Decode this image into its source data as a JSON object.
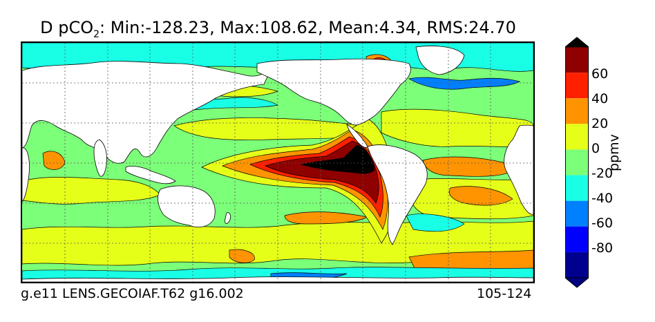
{
  "title": {
    "prefix": "D pCO",
    "subscript": "2",
    "suffix": ": Min:-128.23, Max:108.62, Mean:4.34, RMS:24.70"
  },
  "footer": {
    "left": "g.e11 LENS.GECOIAF.T62 g16.002",
    "right": "105-124"
  },
  "colorbar": {
    "label": "ppmv",
    "ticks": [
      "60",
      "40",
      "20",
      "0",
      "-20",
      "-40",
      "-60",
      "-80"
    ],
    "bands": [
      {
        "range": "< -100",
        "color": "#000080"
      },
      {
        "range": "-100 to -80",
        "color": "#00008f"
      },
      {
        "range": "-80 to -60",
        "color": "#0000ff"
      },
      {
        "range": "-60 to -40",
        "color": "#0080ff"
      },
      {
        "range": "-40 to -20",
        "color": "#19ffe6"
      },
      {
        "range": "-20 to 0",
        "color": "#7cff79"
      },
      {
        "range": "0 to 20",
        "color": "#e6ff19"
      },
      {
        "range": "20 to 40",
        "color": "#ff9400"
      },
      {
        "range": "40 to 60",
        "color": "#ff2000"
      },
      {
        "range": "60 to 80",
        "color": "#8f0000"
      },
      {
        "range": "> 80",
        "color": "#000000"
      }
    ]
  },
  "map": {
    "projection": "cylindrical",
    "grid": "dotted",
    "field": "pCO2 difference"
  }
}
